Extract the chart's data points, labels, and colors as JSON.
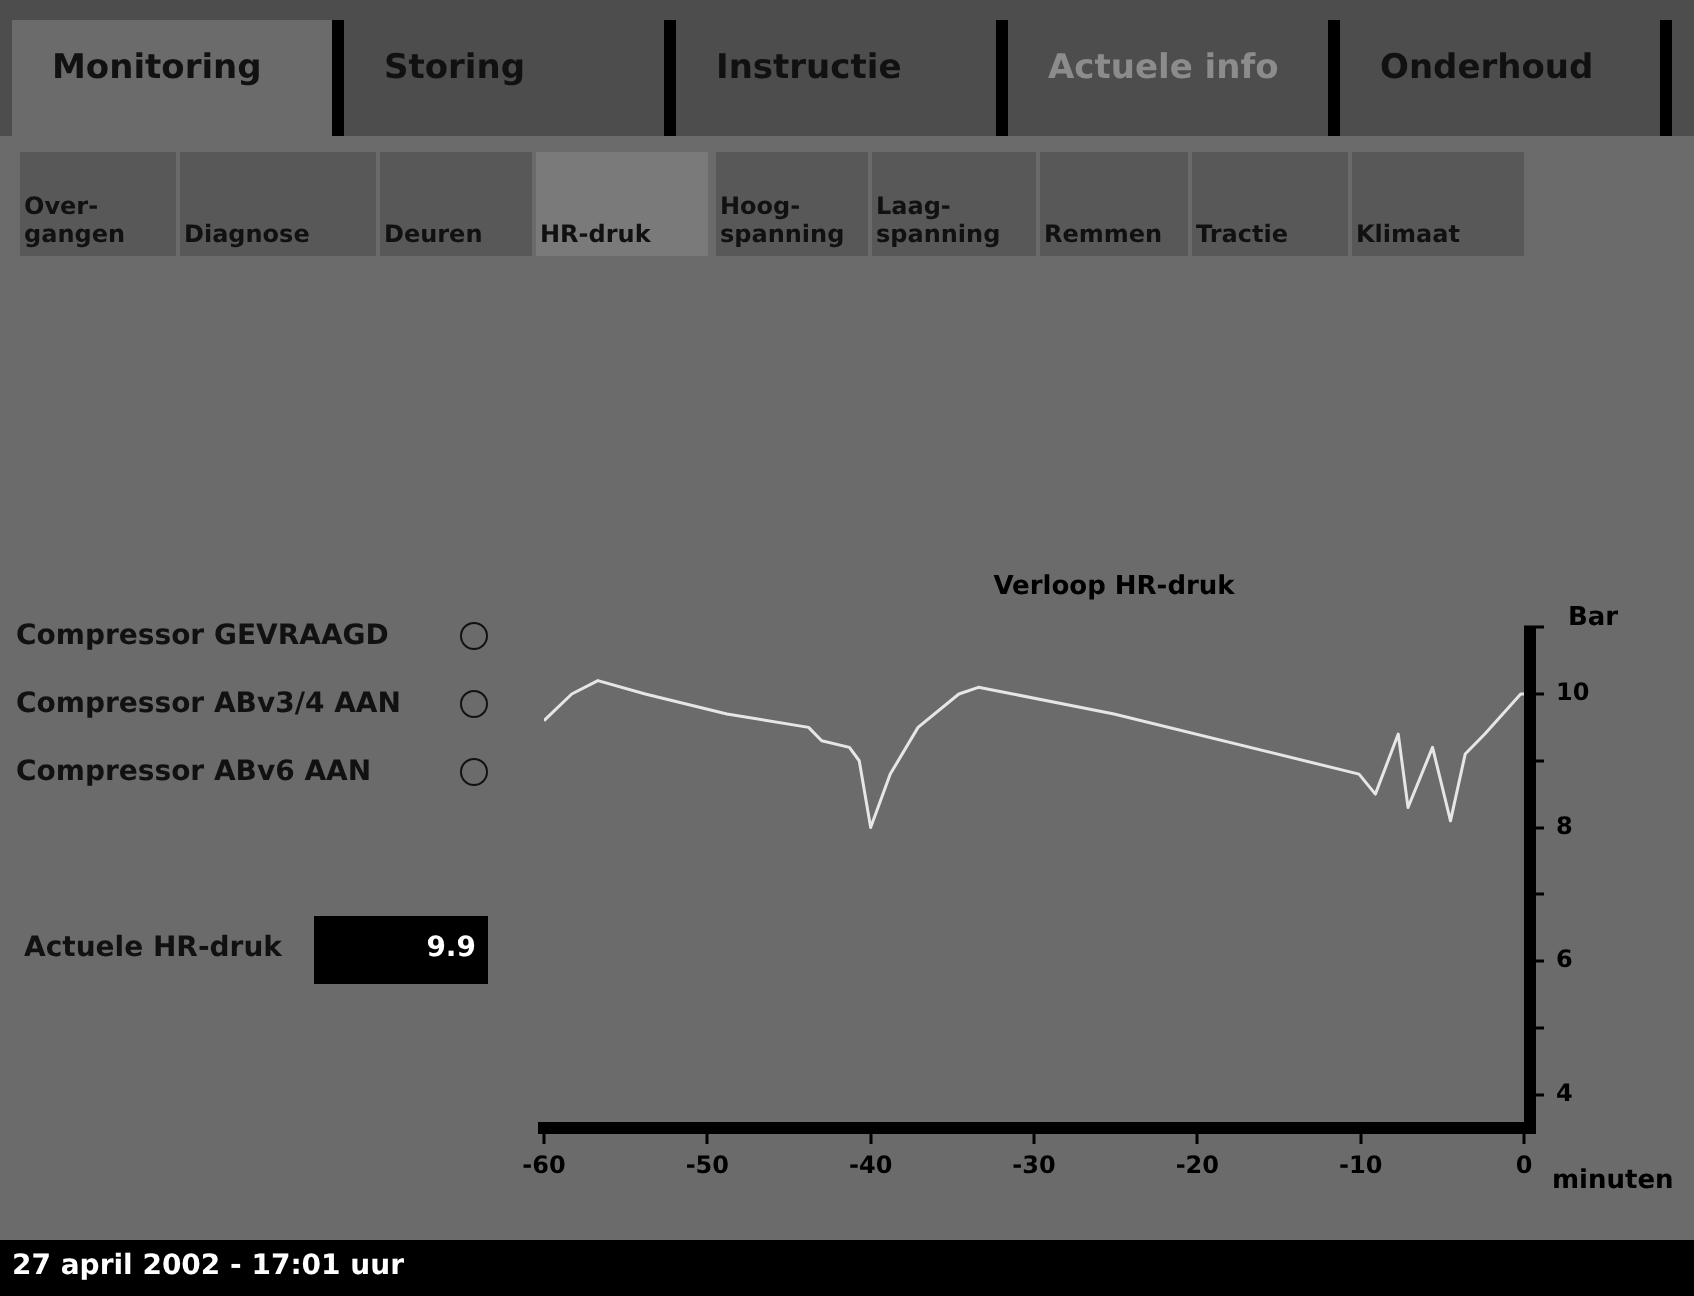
{
  "chart_data": {
    "type": "line",
    "title": "Verloop HR-druk",
    "xlabel": "minuten",
    "ylabel": "Bar",
    "x": [
      -60,
      -58.3,
      -56.7,
      -53.8,
      -48.8,
      -43.8,
      -43.0,
      -41.3,
      -40.7,
      -40.0,
      -38.8,
      -37.1,
      -34.6,
      -33.4,
      -31.3,
      -25.1,
      -10.1,
      -9.1,
      -7.7,
      -7.1,
      -5.6,
      -4.5,
      -3.6,
      -2.4,
      -0.2,
      0
    ],
    "series": [
      {
        "color": "#e6e6e6",
        "values": [
          9.6,
          10.0,
          10.2,
          10.0,
          9.7,
          9.5,
          9.3,
          9.2,
          9.0,
          8.0,
          8.8,
          9.5,
          10.0,
          10.1,
          10.0,
          9.7,
          8.8,
          8.5,
          9.4,
          8.3,
          9.2,
          8.1,
          9.1,
          9.4,
          10.0,
          10.0
        ]
      }
    ],
    "xlim": [
      -60,
      0
    ],
    "xticks": [
      -60,
      -50,
      -40,
      -30,
      -20,
      -10,
      0
    ],
    "ylim": [
      3.5,
      11
    ],
    "yticks": [
      4,
      {
        "value": 5,
        "label": null
      },
      6,
      {
        "value": 7,
        "label": null
      },
      8,
      {
        "value": 9,
        "label": null
      },
      10,
      {
        "value": 11,
        "label": null
      }
    ],
    "grid": false,
    "legend": false,
    "marker": "none",
    "line_style": "solid",
    "annotations": [
      "Monitoring",
      "Storing",
      "Instructie",
      "Actuele info",
      "Onderhoud",
      "Over-\ngangen",
      "Diagnose",
      "Deuren",
      "HR-druk",
      "Hoog-\nspanning",
      "Laag-\nspanning",
      "Remmen",
      "Tractie",
      "Klimaat",
      "Compressor GEVRAAGD",
      "Compressor ABv3/4 AAN",
      "Compressor ABv6 AAN",
      "Actuele HR-druk",
      "9.9",
      "27 april 2002 - 17:01 uur"
    ]
  }
}
